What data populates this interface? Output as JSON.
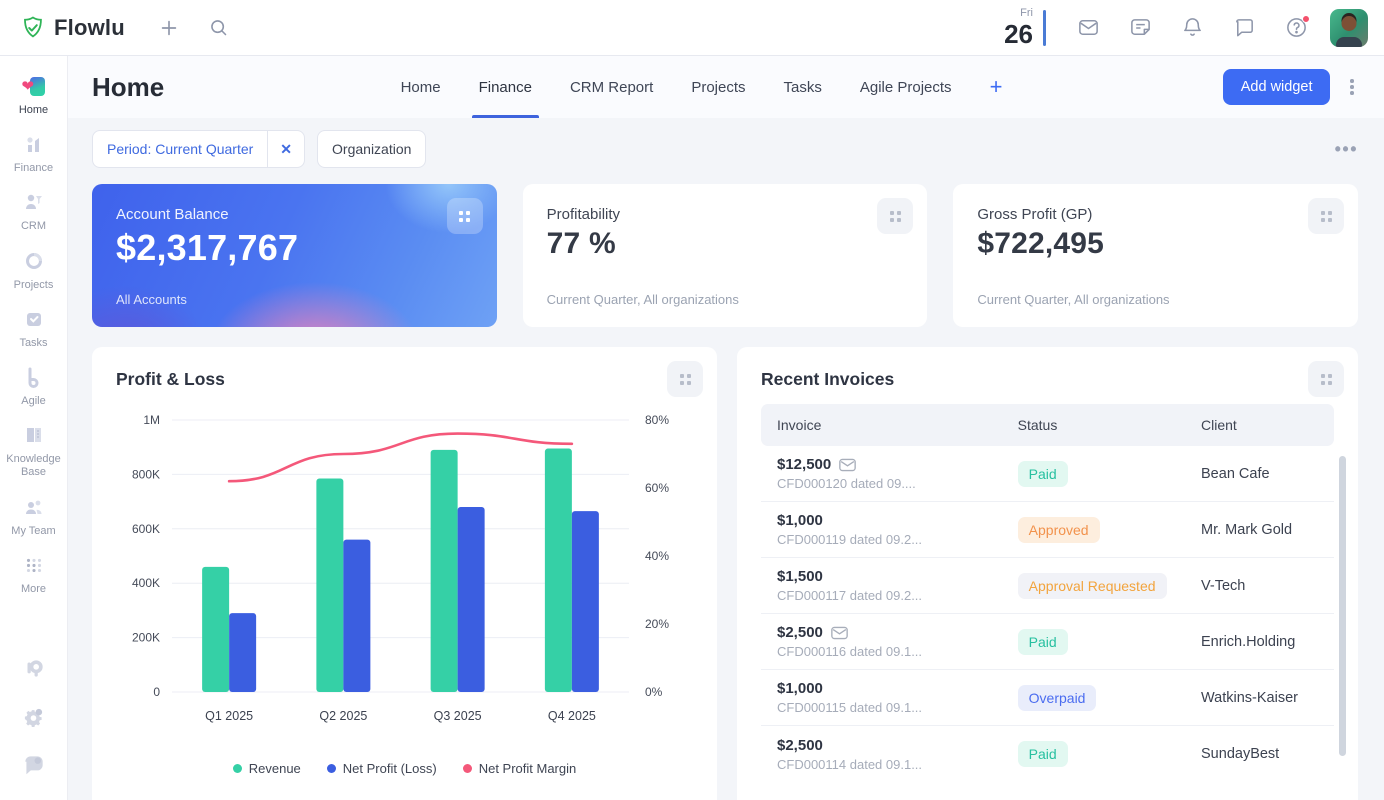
{
  "topbar": {
    "brand": "Flowlu",
    "date_weekday": "Fri",
    "date_day": "26"
  },
  "sidebar": {
    "items": [
      {
        "label": "Home"
      },
      {
        "label": "Finance"
      },
      {
        "label": "CRM"
      },
      {
        "label": "Projects"
      },
      {
        "label": "Tasks"
      },
      {
        "label": "Agile"
      },
      {
        "label": "Knowledge Base"
      },
      {
        "label": "My Team"
      },
      {
        "label": "More"
      }
    ]
  },
  "header": {
    "title": "Home",
    "tabs": [
      "Home",
      "Finance",
      "CRM Report",
      "Projects",
      "Tasks",
      "Agile Projects"
    ],
    "active_tab": "Finance",
    "add_widget_label": "Add widget"
  },
  "filters": {
    "period_chip": "Period: Current Quarter",
    "organization_chip": "Organization"
  },
  "kpis": {
    "balance": {
      "title": "Account Balance",
      "value": "$2,317,767",
      "subtitle": "All Accounts"
    },
    "profitability": {
      "title": "Profitability",
      "value": "77 %",
      "caption": "Current Quarter, All organizations"
    },
    "gross_profit": {
      "title": "Gross Profit (GP)",
      "value": "$722,495",
      "caption": "Current Quarter, All organizations"
    }
  },
  "chart_data": {
    "type": "bar+line",
    "title": "Profit & Loss",
    "categories": [
      "Q1 2025",
      "Q2 2025",
      "Q3 2025",
      "Q4 2025"
    ],
    "series": [
      {
        "name": "Revenue",
        "axis": "left",
        "color": "#35d0a6",
        "values": [
          460000,
          785000,
          890000,
          895000
        ]
      },
      {
        "name": "Net Profit (Loss)",
        "axis": "left",
        "color": "#3b5ee0",
        "values": [
          290000,
          560000,
          680000,
          665000
        ]
      }
    ],
    "line_series": {
      "name": "Net Profit Margin",
      "axis": "right",
      "color": "#f4587a",
      "values": [
        62,
        70,
        76,
        73
      ]
    },
    "ylim": [
      0,
      1000000
    ],
    "y2lim": [
      0,
      80
    ],
    "left_ticks": [
      "0",
      "200K",
      "400K",
      "600K",
      "800K",
      "1M"
    ],
    "right_ticks": [
      "0%",
      "20%",
      "40%",
      "60%",
      "80%"
    ],
    "grid": true,
    "legend_position": "bottom",
    "legend": [
      {
        "label": "Revenue",
        "color": "#35d0a6"
      },
      {
        "label": "Net Profit (Loss)",
        "color": "#3b5ee0"
      },
      {
        "label": "Net Profit Margin",
        "color": "#f4587a"
      }
    ]
  },
  "invoices": {
    "title": "Recent Invoices",
    "columns": {
      "invoice": "Invoice",
      "status": "Status",
      "client": "Client"
    },
    "rows": [
      {
        "amount": "$12,500",
        "has_mail": true,
        "ref": "CFD000120 dated 09....",
        "status": "Paid",
        "status_type": "paid",
        "client": "Bean Cafe"
      },
      {
        "amount": "$1,000",
        "has_mail": false,
        "ref": "CFD000119 dated 09.2...",
        "status": "Approved",
        "status_type": "approved",
        "client": "Mr. Mark Gold"
      },
      {
        "amount": "$1,500",
        "has_mail": false,
        "ref": "CFD000117 dated 09.2...",
        "status": "Approval Requested",
        "status_type": "approval-requested",
        "client": "V-Tech"
      },
      {
        "amount": "$2,500",
        "has_mail": true,
        "ref": "CFD000116 dated 09.1...",
        "status": "Paid",
        "status_type": "paid",
        "client": "Enrich.Holding"
      },
      {
        "amount": "$1,000",
        "has_mail": false,
        "ref": "CFD000115 dated 09.1...",
        "status": "Overpaid",
        "status_type": "overpaid",
        "client": "Watkins-Kaiser"
      },
      {
        "amount": "$2,500",
        "has_mail": false,
        "ref": "CFD000114 dated 09.1...",
        "status": "Paid",
        "status_type": "paid",
        "client": "SundayBest"
      }
    ]
  },
  "colors": {
    "accent_blue": "#3d6bf3",
    "tab_underline": "#3e63dd",
    "paid_green": "#27c0a0",
    "approved_orange": "#f2924c",
    "overpaid_blue": "#4a6cf0",
    "margin_line_pink": "#f4587a",
    "revenue_green": "#35d0a6",
    "net_profit_blue": "#3b5ee0"
  }
}
